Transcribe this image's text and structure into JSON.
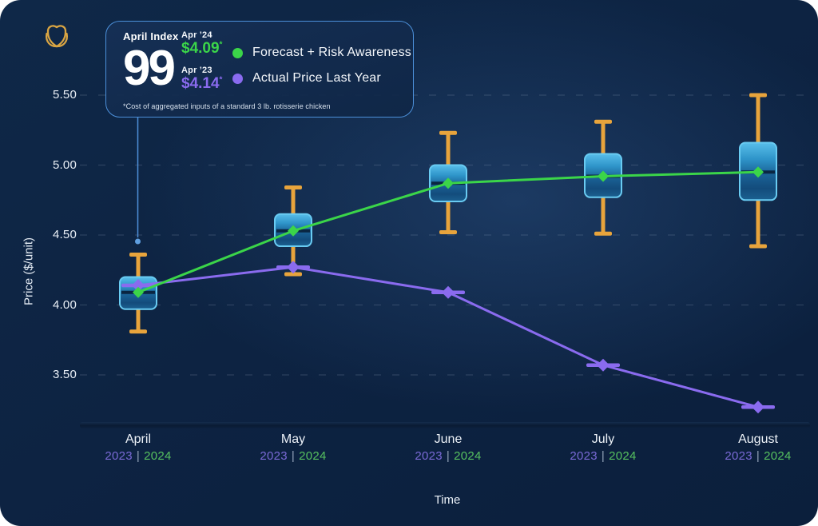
{
  "brand": {
    "logo_icon": "gold-crest-shield-icon"
  },
  "info_card": {
    "index_label": "April Index",
    "index_value": "99",
    "current": {
      "label": "Apr ’24",
      "value": "$4.09",
      "marker": "*"
    },
    "previous": {
      "label": "Apr ’23",
      "value": "$4.14",
      "marker": "*"
    },
    "legend": [
      {
        "label": "Forecast + Risk Awareness",
        "color": "#3BD549"
      },
      {
        "label": "Actual Price Last Year",
        "color": "#8A6BEF"
      }
    ],
    "footnote": "*Cost of aggregated inputs of a standard 3 lb. rotisserie chicken"
  },
  "chart_data": {
    "type": "boxplot-with-lines",
    "title": "",
    "xlabel": "Time",
    "ylabel": "Price ($/unit)",
    "ytick_labels": [
      "5.50",
      "5.00",
      "4.50",
      "4.00",
      "3.50"
    ],
    "ylim": [
      3.1,
      5.7
    ],
    "grid": "horizontal-dashed",
    "legend_position": "top-left-card",
    "categories": [
      "April",
      "May",
      "June",
      "July",
      "August"
    ],
    "year_left": "2023",
    "year_separator": "|",
    "year_right": "2024",
    "boxes": [
      {
        "month": "April",
        "low": 3.81,
        "q1": 3.97,
        "median": 4.09,
        "q3": 4.2,
        "high": 4.36
      },
      {
        "month": "May",
        "low": 4.22,
        "q1": 4.42,
        "median": 4.53,
        "q3": 4.65,
        "high": 4.84
      },
      {
        "month": "June",
        "low": 4.52,
        "q1": 4.74,
        "median": 4.87,
        "q3": 5.0,
        "high": 5.23
      },
      {
        "month": "July",
        "low": 4.51,
        "q1": 4.77,
        "median": 4.92,
        "q3": 5.08,
        "high": 5.31
      },
      {
        "month": "August",
        "low": 4.42,
        "q1": 4.75,
        "median": 4.95,
        "q3": 5.16,
        "high": 5.5
      }
    ],
    "series": [
      {
        "name": "Forecast + Risk Awareness",
        "marker": "diamond",
        "color": "#3BD549",
        "values": [
          4.09,
          4.53,
          4.87,
          4.92,
          4.95
        ]
      },
      {
        "name": "Actual Price Last Year",
        "marker": "diamond-with-cap",
        "color": "#8A6BEF",
        "values": [
          4.14,
          4.27,
          4.09,
          3.57,
          3.27
        ]
      }
    ],
    "colors": {
      "whisker": "#E8A43C",
      "box_border": "#69CBF2",
      "box_fill_top": "#58BEEA",
      "box_fill_bottom": "#1B6090",
      "median": "#0A2642",
      "grid": "#8296AF",
      "year_left": "#7A6AD6",
      "year_right": "#57C15F",
      "leader": "#4E8FD9",
      "leader_dot": "#5F9FE0"
    }
  }
}
